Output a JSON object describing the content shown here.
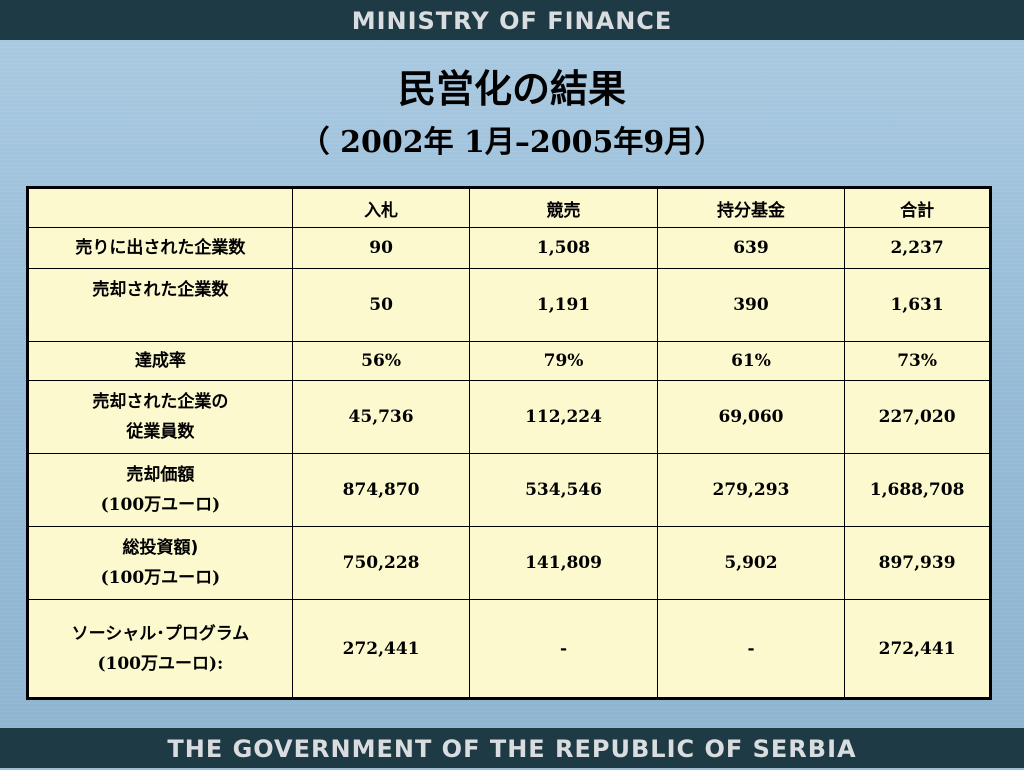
{
  "header": {
    "top_band": "MINISTRY OF FINANCE",
    "bottom_band": "THE GOVERNMENT OF THE REPUBLIC OF SERBIA"
  },
  "slide": {
    "title": "民営化の結果",
    "subtitle": "（ 2002年 1月–2005年9月）"
  },
  "table": {
    "columns": [
      "",
      "入札",
      "競売",
      "持分基金",
      "合計"
    ],
    "rows": [
      {
        "label": "売りに出された企業数",
        "sublabel": "",
        "values": [
          "90",
          "1,508",
          "639",
          "2,237"
        ]
      },
      {
        "label": "売却された企業数",
        "sublabel": "",
        "values": [
          "50",
          "1,191",
          "390",
          "1,631"
        ]
      },
      {
        "label": "達成率",
        "sublabel": "",
        "values": [
          "56%",
          "79%",
          "61%",
          "73%"
        ]
      },
      {
        "label": "売却された企業の",
        "sublabel": "従業員数",
        "values": [
          "45,736",
          "112,224",
          "69,060",
          "227,020"
        ]
      },
      {
        "label": "売却価額",
        "sublabel": "(100万ユーロ)",
        "values": [
          "874,870",
          "534,546",
          "279,293",
          "1,688,708"
        ]
      },
      {
        "label": "総投資額)",
        "sublabel": "(100万ユーロ)",
        "values": [
          "750,228",
          "141,809",
          "5,902",
          "897,939"
        ]
      },
      {
        "label": "ソーシャル･プログラム",
        "sublabel": "(100万ユーロ):",
        "values": [
          "272,441",
          "-",
          "-",
          "272,441"
        ]
      }
    ]
  }
}
